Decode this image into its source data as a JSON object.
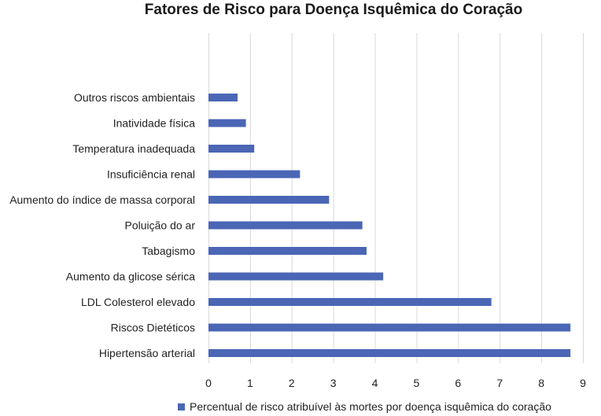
{
  "chart_data": {
    "type": "bar",
    "orientation": "horizontal",
    "title": "Fatores de Risco para Doença Isquêmica do Coração",
    "categories": [
      "Outros riscos ambientais",
      "Inatividade física",
      "Temperatura inadequada",
      "Insuficiência renal",
      "Aumento do índice de massa corporal",
      "Poluição do ar",
      "Tabagismo",
      "Aumento da glicose sérica",
      "LDL Colesterol elevado",
      "Riscos Dietéticos",
      "Hipertensão arterial"
    ],
    "series": [
      {
        "name": "Percentual de risco atribuível às mortes por doença isquêmica do coração",
        "values": [
          0.7,
          0.9,
          1.1,
          2.2,
          2.9,
          3.7,
          3.8,
          4.2,
          6.8,
          8.7,
          8.7
        ],
        "color": "#4a66b5"
      }
    ],
    "xlim": [
      0,
      9
    ],
    "xticks": [
      "0",
      "1",
      "2",
      "3",
      "4",
      "5",
      "6",
      "7",
      "8",
      "9"
    ],
    "grid": true,
    "legend_position": "bottom"
  }
}
